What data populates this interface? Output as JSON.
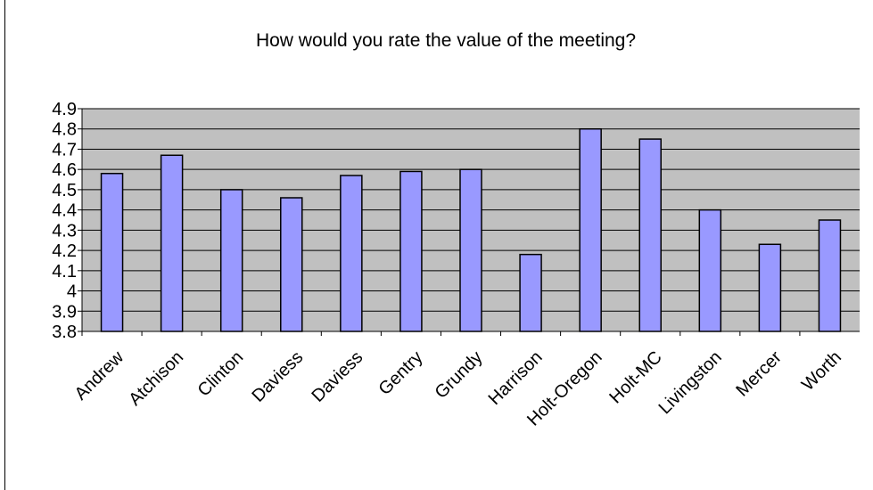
{
  "chart_data": {
    "type": "bar",
    "title": "How would you rate the value of the meeting?",
    "categories": [
      "Andrew",
      "Atchison",
      "Clinton",
      "Daviess",
      "Daviess",
      "Gentry",
      "Grundy",
      "Harrison",
      "Holt-Oregon",
      "Holt-MC",
      "Livingston",
      "Mercer",
      "Worth"
    ],
    "values": [
      4.58,
      4.67,
      4.5,
      4.46,
      4.57,
      4.59,
      4.6,
      4.18,
      4.8,
      4.75,
      4.4,
      4.23,
      4.35
    ],
    "color": "#9999ff",
    "ylim": [
      3.8,
      4.9
    ],
    "yticks": [
      3.8,
      3.9,
      4,
      4.1,
      4.2,
      4.3,
      4.4,
      4.5,
      4.6,
      4.7,
      4.8,
      4.9
    ],
    "grid": true
  }
}
